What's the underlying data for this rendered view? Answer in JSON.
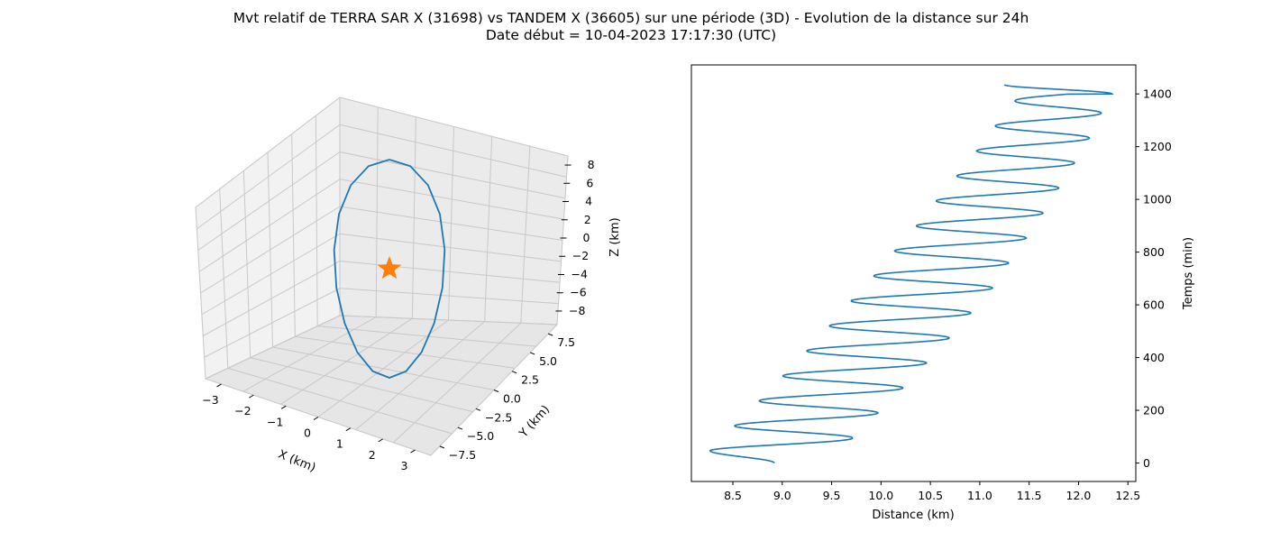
{
  "figure": {
    "title_line1": "Mvt relatif de TERRA SAR X (31698) vs TANDEM X (36605) sur une période (3D) - Evolution de la distance sur 24h",
    "title_line2": "Date début = 10-04-2023 17:17:30 (UTC)"
  },
  "colors": {
    "trajectory": "#1f77b4",
    "marker": "#ff7f0e",
    "pane": "#f2f2f2",
    "grid": "#c8c8c8"
  },
  "chart_data": [
    {
      "type": "line3d",
      "xlabel": "X (km)",
      "ylabel": "Y (km)",
      "zlabel": "Z (km)",
      "xticks": [
        "−3",
        "−2",
        "−1",
        "0",
        "1",
        "2",
        "3"
      ],
      "yticks": [
        "−7.5",
        "−5.0",
        "−2.5",
        "0.0",
        "2.5",
        "5.0",
        "7.5"
      ],
      "zticks": [
        "−8",
        "−6",
        "−4",
        "−2",
        "0",
        "2",
        "4",
        "6",
        "8"
      ],
      "xlim": [
        -3.3,
        3.3
      ],
      "ylim": [
        -9,
        9
      ],
      "zlim": [
        -9,
        9
      ],
      "marker": {
        "shape": "star",
        "x": 0,
        "y": 0,
        "z": 0
      },
      "series": [
        {
          "description_points_xyz": [
            [
              0.1,
              -0.6,
              8.2
            ],
            [
              -0.9,
              -2.4,
              7.6
            ],
            [
              -1.9,
              -4.2,
              6.2
            ],
            [
              -2.6,
              -5.6,
              4.0
            ],
            [
              -3.0,
              -6.2,
              1.4
            ],
            [
              -3.0,
              -5.8,
              -1.4
            ],
            [
              -2.6,
              -4.8,
              -3.9
            ],
            [
              -1.9,
              -3.0,
              -5.9
            ],
            [
              -0.9,
              -0.8,
              -7.3
            ],
            [
              0.1,
              1.4,
              -8.0
            ],
            [
              1.1,
              3.4,
              -7.7
            ],
            [
              1.9,
              5.0,
              -6.4
            ],
            [
              2.5,
              6.0,
              -4.3
            ],
            [
              2.8,
              6.3,
              -1.7
            ],
            [
              2.7,
              5.8,
              1.1
            ],
            [
              2.3,
              4.6,
              3.6
            ],
            [
              1.6,
              2.8,
              5.7
            ],
            [
              0.8,
              0.8,
              7.2
            ],
            [
              0.1,
              -0.6,
              8.2
            ]
          ]
        }
      ]
    },
    {
      "type": "line",
      "xlabel": "Distance (km)",
      "ylabel": "Temps (min)",
      "xticks": [
        "8.5",
        "9.0",
        "9.5",
        "10.0",
        "10.5",
        "11.0",
        "11.5",
        "12.0",
        "12.5"
      ],
      "yticks": [
        "0",
        "200",
        "400",
        "600",
        "800",
        "1000",
        "1200",
        "1400"
      ],
      "xlim": [
        8.08,
        12.58
      ],
      "ylim": [
        -70,
        1510
      ],
      "y_axis_side": "right",
      "orbit_period_min": 94.8,
      "t_max_min": 1435,
      "distance_at_t0": 8.92,
      "minima": [
        [
          47,
          8.27
        ],
        [
          142,
          8.52
        ],
        [
          237,
          8.77
        ],
        [
          332,
          9.01
        ],
        [
          426,
          9.25
        ],
        [
          521,
          9.48
        ],
        [
          616,
          9.7
        ],
        [
          711,
          9.93
        ],
        [
          806,
          10.14
        ],
        [
          900,
          10.36
        ],
        [
          995,
          10.56
        ],
        [
          1090,
          10.77
        ],
        [
          1185,
          10.97
        ],
        [
          1280,
          11.16
        ],
        [
          1375,
          11.36
        ]
      ],
      "maxima": [
        [
          0,
          8.92
        ],
        [
          95,
          9.71
        ],
        [
          190,
          9.97
        ],
        [
          284,
          10.22
        ],
        [
          379,
          10.46
        ],
        [
          474,
          10.69
        ],
        [
          569,
          10.91
        ],
        [
          664,
          11.13
        ],
        [
          758,
          11.29
        ],
        [
          853,
          11.47
        ],
        [
          948,
          11.64
        ],
        [
          1043,
          11.8
        ],
        [
          1138,
          11.96
        ],
        [
          1232,
          12.11
        ],
        [
          1327,
          12.23
        ],
        [
          1400,
          12.34
        ],
        [
          1435,
          11.25
        ]
      ]
    }
  ]
}
